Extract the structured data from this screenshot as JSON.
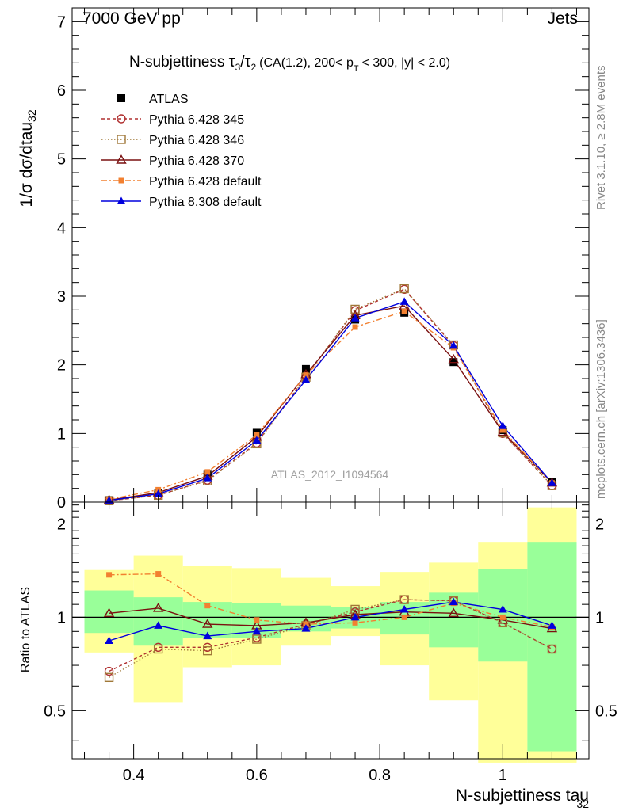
{
  "header": {
    "left": "7000 GeV pp",
    "right": "Jets"
  },
  "side_labels": {
    "rivet": "Rivet 3.1.10, ≥ 2.8M events",
    "mcplots": "mcplots.cern.ch [arXiv:1306.3436]"
  },
  "colors": {
    "atlas": "#000000",
    "p345": "#b03030",
    "p346": "#a07838",
    "p370": "#7a1010",
    "p6def": "#f28030",
    "p8def": "#0000dd",
    "band_inner": "#99ff99",
    "band_outer": "#ffff99"
  },
  "chart_data": [
    {
      "type": "line",
      "title": "N-subjettiness τ3/τ2 (CA(1.2), 200< pT < 300, |y| < 2.0)",
      "title_parts": {
        "main": "N-subjettiness",
        "tau_a": "τ",
        "sub_a": "3",
        "slash": "/",
        "tau_b": "τ",
        "sub_b": "2",
        "cond_a": "(CA(1.2), 200< p",
        "sub_t": "T",
        "cond_b": "< 300, |y| < 2.0)"
      },
      "ylabel": "1/σ dσ/dtau32",
      "ylabel_parts": {
        "main": "1/σ dσ/dtau",
        "sub": "32"
      },
      "watermark": "ATLAS_2012_I1094564",
      "xlim": [
        0.3,
        1.14
      ],
      "ylim": [
        0,
        7.2
      ],
      "yticks": [
        0,
        1,
        2,
        3,
        4,
        5,
        6,
        7
      ],
      "x": [
        0.36,
        0.44,
        0.52,
        0.6,
        0.68,
        0.76,
        0.84,
        0.92,
        1.0,
        1.08
      ],
      "series": [
        {
          "name": "ATLAS",
          "key": "atlas",
          "values": [
            0.03,
            0.13,
            0.4,
            1.01,
            1.94,
            2.66,
            2.76,
            2.04,
            1.05,
            0.3
          ]
        },
        {
          "name": "Pythia 6.428 345",
          "key": "p345",
          "values": [
            0.02,
            0.1,
            0.32,
            0.86,
            1.83,
            2.79,
            3.1,
            2.28,
            1.0,
            0.24
          ]
        },
        {
          "name": "Pythia 6.428 346",
          "key": "p346",
          "values": [
            0.02,
            0.1,
            0.31,
            0.85,
            1.82,
            2.81,
            3.11,
            2.29,
            1.01,
            0.24
          ]
        },
        {
          "name": "Pythia 6.428 370",
          "key": "p370",
          "values": [
            0.03,
            0.14,
            0.38,
            0.95,
            1.86,
            2.72,
            2.86,
            2.08,
            1.02,
            0.28
          ]
        },
        {
          "name": "Pythia 6.428 default",
          "key": "p6def",
          "values": [
            0.04,
            0.18,
            0.44,
            0.98,
            1.85,
            2.55,
            2.78,
            2.25,
            1.05,
            0.28
          ]
        },
        {
          "name": "Pythia 8.308 default",
          "key": "p8def",
          "values": [
            0.025,
            0.12,
            0.35,
            0.9,
            1.78,
            2.68,
            2.92,
            2.28,
            1.11,
            0.28
          ]
        }
      ]
    },
    {
      "type": "line",
      "ylabel": "Ratio to ATLAS",
      "xlabel": "N-subjettiness tau32",
      "xlabel_parts": {
        "main": "N-subjettiness tau",
        "sub": "32"
      },
      "xlim": [
        0.3,
        1.14
      ],
      "ylim": [
        0.35,
        2.35
      ],
      "xticks": [
        0.4,
        0.6,
        0.8,
        1.0
      ],
      "xtick_labels": [
        "0.4",
        "0.6",
        "0.8",
        "1"
      ],
      "yticks": [
        0.5,
        1,
        2
      ],
      "ytick_labels": [
        "0.5",
        "1",
        "2"
      ],
      "bins": [
        {
          "lo": 0.32,
          "hi": 0.4,
          "inner": [
            0.89,
            1.22
          ],
          "outer": [
            0.77,
            1.42
          ]
        },
        {
          "lo": 0.4,
          "hi": 0.48,
          "inner": [
            0.81,
            1.16
          ],
          "outer": [
            0.53,
            1.58
          ]
        },
        {
          "lo": 0.48,
          "hi": 0.56,
          "inner": [
            0.86,
            1.12
          ],
          "outer": [
            0.69,
            1.46
          ]
        },
        {
          "lo": 0.56,
          "hi": 0.64,
          "inner": [
            0.86,
            1.11
          ],
          "outer": [
            0.7,
            1.44
          ]
        },
        {
          "lo": 0.64,
          "hi": 0.72,
          "inner": [
            0.9,
            1.09
          ],
          "outer": [
            0.81,
            1.34
          ]
        },
        {
          "lo": 0.72,
          "hi": 0.8,
          "inner": [
            0.92,
            1.08
          ],
          "outer": [
            0.87,
            1.26
          ]
        },
        {
          "lo": 0.8,
          "hi": 0.88,
          "inner": [
            0.88,
            1.12
          ],
          "outer": [
            0.7,
            1.4
          ]
        },
        {
          "lo": 0.88,
          "hi": 0.96,
          "inner": [
            0.8,
            1.2
          ],
          "outer": [
            0.54,
            1.5
          ]
        },
        {
          "lo": 0.96,
          "hi": 1.04,
          "inner": [
            0.72,
            1.43
          ],
          "outer": [
            0.34,
            1.75
          ]
        },
        {
          "lo": 1.04,
          "hi": 1.12,
          "inner": [
            0.37,
            1.75
          ],
          "outer": [
            0.34,
            2.26
          ]
        }
      ],
      "x": [
        0.36,
        0.44,
        0.52,
        0.6,
        0.68,
        0.76,
        0.84,
        0.92,
        1.0,
        1.08
      ],
      "series": [
        {
          "name": "Pythia 6.428 345",
          "key": "p345",
          "values": [
            0.67,
            0.8,
            0.8,
            0.86,
            0.95,
            1.04,
            1.14,
            1.13,
            0.96,
            0.79
          ]
        },
        {
          "name": "Pythia 6.428 346",
          "key": "p346",
          "values": [
            0.64,
            0.79,
            0.78,
            0.85,
            0.94,
            1.06,
            1.14,
            1.13,
            0.96,
            0.79
          ]
        },
        {
          "name": "Pythia 6.428 370",
          "key": "p370",
          "values": [
            1.03,
            1.07,
            0.95,
            0.94,
            0.96,
            1.02,
            1.04,
            1.03,
            0.98,
            0.92
          ]
        },
        {
          "name": "Pythia 6.428 default",
          "key": "p6def",
          "values": [
            1.37,
            1.38,
            1.09,
            0.98,
            0.95,
            0.96,
            1.0,
            1.11,
            1.0,
            0.93
          ]
        },
        {
          "name": "Pythia 8.308 default",
          "key": "p8def",
          "values": [
            0.84,
            0.94,
            0.87,
            0.9,
            0.92,
            1.0,
            1.06,
            1.12,
            1.06,
            0.94
          ]
        }
      ]
    }
  ]
}
